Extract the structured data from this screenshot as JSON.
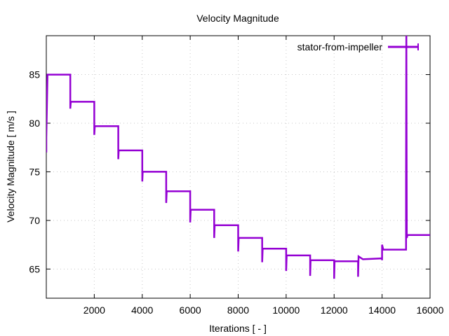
{
  "chart_data": {
    "type": "line",
    "title": "Velocity Magnitude",
    "xlabel": "Iterations [ - ]",
    "ylabel": "Velocity Magnitude [ m/s ]",
    "xlim": [
      0,
      16000
    ],
    "ylim": [
      62,
      89
    ],
    "xticks": [
      2000,
      4000,
      6000,
      8000,
      10000,
      12000,
      14000,
      16000
    ],
    "yticks": [
      65,
      70,
      75,
      80,
      85
    ],
    "grid": true,
    "legend_position": "top-right",
    "series": [
      {
        "name": "stator-from-impeller",
        "color": "#9400d3",
        "points": [
          [
            0,
            77
          ],
          [
            0,
            78.5
          ],
          [
            50,
            85.0
          ],
          [
            1000,
            85.0
          ],
          [
            1000,
            81.5
          ],
          [
            1020,
            82.2
          ],
          [
            2000,
            82.2
          ],
          [
            2000,
            78.8
          ],
          [
            2020,
            79.7
          ],
          [
            3000,
            79.7
          ],
          [
            3000,
            76.3
          ],
          [
            3020,
            77.2
          ],
          [
            4000,
            77.2
          ],
          [
            4000,
            74.0
          ],
          [
            4020,
            75.0
          ],
          [
            5000,
            75.0
          ],
          [
            5000,
            71.8
          ],
          [
            5020,
            73.0
          ],
          [
            6000,
            73.0
          ],
          [
            6000,
            69.8
          ],
          [
            6020,
            71.1
          ],
          [
            7000,
            71.1
          ],
          [
            7000,
            68.2
          ],
          [
            7020,
            69.5
          ],
          [
            8000,
            69.5
          ],
          [
            8000,
            66.8
          ],
          [
            8020,
            68.2
          ],
          [
            9000,
            68.2
          ],
          [
            9000,
            65.7
          ],
          [
            9020,
            67.1
          ],
          [
            10000,
            67.1
          ],
          [
            10000,
            64.8
          ],
          [
            10020,
            66.4
          ],
          [
            11000,
            66.4
          ],
          [
            11000,
            64.3
          ],
          [
            11020,
            65.9
          ],
          [
            12000,
            65.9
          ],
          [
            12000,
            64.0
          ],
          [
            12020,
            65.8
          ],
          [
            13000,
            65.8
          ],
          [
            13000,
            64.2
          ],
          [
            13020,
            66.3
          ],
          [
            13200,
            66.0
          ],
          [
            14000,
            66.1
          ],
          [
            14000,
            65.9
          ],
          [
            14000,
            67.5
          ],
          [
            14050,
            67.0
          ],
          [
            15000,
            67.0
          ],
          [
            15000,
            74.0
          ],
          [
            15010,
            89.5
          ],
          [
            15030,
            68.2
          ],
          [
            15060,
            68.5
          ],
          [
            16000,
            68.5
          ]
        ]
      }
    ]
  }
}
